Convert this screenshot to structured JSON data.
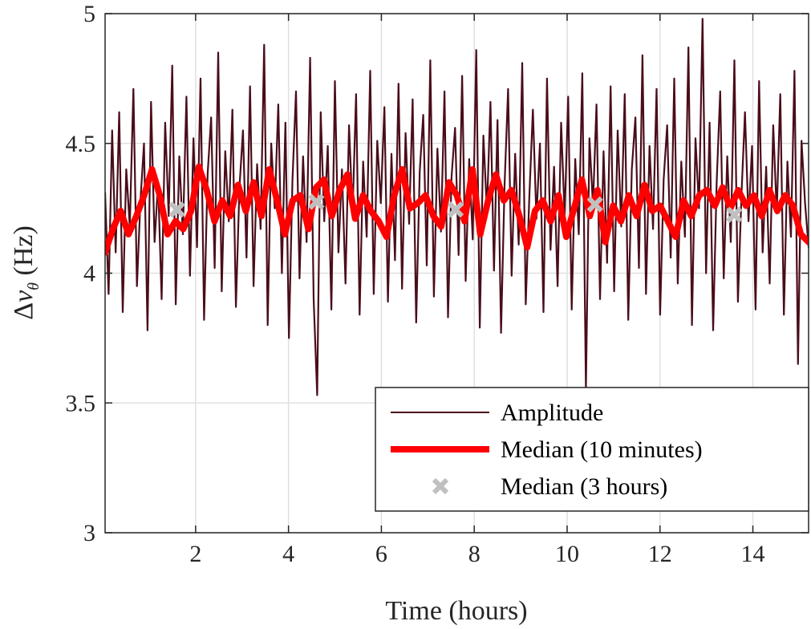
{
  "chart_data": {
    "type": "line",
    "xlabel": "Time (hours)",
    "ylabel_parts": {
      "delta": "Δ",
      "nu": "ν",
      "sub": "θ",
      "unit": " (Hz)"
    },
    "xlim": [
      0.05,
      15.2
    ],
    "ylim": [
      3,
      5
    ],
    "xticks": [
      2,
      4,
      6,
      8,
      10,
      12,
      14
    ],
    "xtick_labels": [
      "2",
      "4",
      "6",
      "8",
      "10",
      "12",
      "14"
    ],
    "yticks": [
      3,
      3.5,
      4,
      4.5,
      5
    ],
    "ytick_labels": [
      "3",
      "3.5",
      "4",
      "4.5",
      "5"
    ],
    "grid": true,
    "legend_position": "bottom-right",
    "colors": {
      "amplitude": "#4a0d1a",
      "median10": "#ff0000",
      "median3h": "#c0c0c0"
    },
    "series": [
      {
        "name": "Amplitude",
        "x_range": [
          0.05,
          15.2
        ],
        "values": [
          4.31,
          3.92,
          4.55,
          4.08,
          4.62,
          3.85,
          4.4,
          4.18,
          4.71,
          3.95,
          4.28,
          4.5,
          3.78,
          4.66,
          4.12,
          4.35,
          3.9,
          4.58,
          4.22,
          4.8,
          3.88,
          4.45,
          4.15,
          4.68,
          3.99,
          4.52,
          4.1,
          4.75,
          3.82,
          4.38,
          4.6,
          4.02,
          4.85,
          3.93,
          4.47,
          4.2,
          4.63,
          3.87,
          4.33,
          4.55,
          4.06,
          4.72,
          3.95,
          4.42,
          4.17,
          4.88,
          3.8,
          4.5,
          4.25,
          4.65,
          4.0,
          4.58,
          3.75,
          4.36,
          4.7,
          3.98,
          4.45,
          4.12,
          4.83,
          3.9,
          3.53,
          4.62,
          4.2,
          4.49,
          3.86,
          4.74,
          4.08,
          4.4,
          3.96,
          4.57,
          4.23,
          4.69,
          3.84,
          4.43,
          4.14,
          4.78,
          3.92,
          4.51,
          4.27,
          4.64,
          3.89,
          4.46,
          4.05,
          4.73,
          3.94,
          4.54,
          4.19,
          4.67,
          3.81,
          4.39,
          4.61,
          4.03,
          4.82,
          3.91,
          4.48,
          4.16,
          4.7,
          3.83,
          4.37,
          4.56,
          4.07,
          4.76,
          3.97,
          4.44,
          4.13,
          4.86,
          3.79,
          4.53,
          4.24,
          4.66,
          4.01,
          4.59,
          3.77,
          4.34,
          4.71,
          3.99,
          4.46,
          4.11,
          4.81,
          3.88,
          4.29,
          4.63,
          4.21,
          4.5,
          3.85,
          4.75,
          4.09,
          4.41,
          3.95,
          4.58,
          4.22,
          4.68,
          3.86,
          4.44,
          4.15,
          4.77,
          3.55,
          4.52,
          4.26,
          4.65,
          3.9,
          4.47,
          4.04,
          4.72,
          3.93,
          4.55,
          4.18,
          4.69,
          3.82,
          4.4,
          4.6,
          4.02,
          4.84,
          3.92,
          4.49,
          4.17,
          4.71,
          3.84,
          4.36,
          4.57,
          4.06,
          4.75,
          3.96,
          4.43,
          4.14,
          4.87,
          3.8,
          4.52,
          4.25,
          4.98,
          4.0,
          4.58,
          3.78,
          4.35,
          4.7,
          3.98,
          4.45,
          4.12,
          4.82,
          3.89,
          4.3,
          4.62,
          4.2,
          4.49,
          3.86,
          4.74,
          4.08,
          4.41,
          3.96,
          4.57,
          4.23,
          4.69,
          3.84,
          4.43,
          4.14,
          4.78,
          3.65,
          4.51,
          4.27,
          4.1
        ]
      },
      {
        "name": "Median (10 minutes)",
        "x_range": [
          0.05,
          15.2
        ],
        "values": [
          4.08,
          4.17,
          4.24,
          4.15,
          4.22,
          4.3,
          4.4,
          4.3,
          4.15,
          4.2,
          4.17,
          4.24,
          4.41,
          4.32,
          4.2,
          4.28,
          4.22,
          4.34,
          4.24,
          4.35,
          4.22,
          4.4,
          4.28,
          4.15,
          4.28,
          4.3,
          4.17,
          4.33,
          4.36,
          4.22,
          4.32,
          4.38,
          4.21,
          4.3,
          4.24,
          4.2,
          4.14,
          4.3,
          4.4,
          4.25,
          4.27,
          4.3,
          4.22,
          4.18,
          4.35,
          4.3,
          4.2,
          4.4,
          4.15,
          4.28,
          4.38,
          4.28,
          4.32,
          4.22,
          4.1,
          4.24,
          4.28,
          4.2,
          4.3,
          4.14,
          4.25,
          4.36,
          4.22,
          4.32,
          4.12,
          4.26,
          4.2,
          4.3,
          4.22,
          4.34,
          4.24,
          4.26,
          4.2,
          4.14,
          4.28,
          4.22,
          4.3,
          4.32,
          4.26,
          4.33,
          4.25,
          4.32,
          4.26,
          4.3,
          4.22,
          4.32,
          4.24,
          4.3,
          4.26,
          4.15,
          4.12
        ]
      },
      {
        "name": "Median (3 hours)",
        "x": [
          1.6,
          4.6,
          7.6,
          10.6,
          13.6
        ],
        "values": [
          4.245,
          4.275,
          4.245,
          4.265,
          4.225
        ]
      }
    ]
  }
}
